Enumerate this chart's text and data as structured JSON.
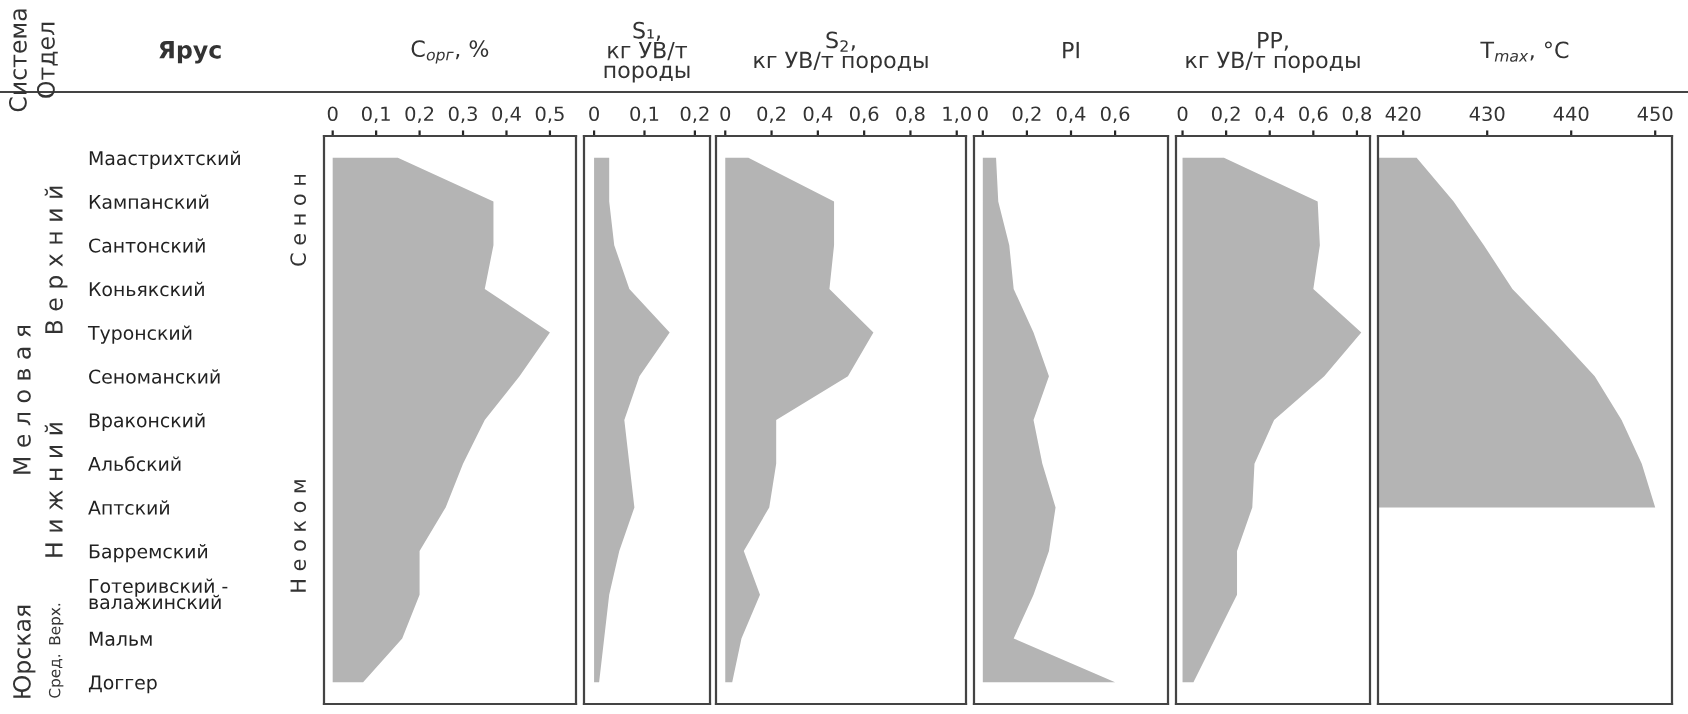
{
  "chart_data": [
    {
      "type": "area",
      "orientation": "horizontal",
      "title": "C$_{орг}$, %",
      "ylabel": "Ярус",
      "categories": [
        "Маастрихтский",
        "Кампанский",
        "Сантонский",
        "Коньякский",
        "Туронский",
        "Сеноманский",
        "Враконский",
        "Альбский",
        "Аптский",
        "Барремский",
        "Готеривский -\nвалажинский",
        "Мальм",
        "Доггер"
      ],
      "values": [
        0.15,
        0.37,
        0.37,
        0.35,
        0.5,
        0.43,
        0.35,
        0.3,
        0.26,
        0.2,
        0.2,
        0.16,
        0.07
      ],
      "color": "#b4b4b4",
      "xlim": [
        -0.02,
        0.56
      ],
      "xticks": [
        {
          "value": 0,
          "label": "0"
        },
        {
          "value": 0.1,
          "label": "0,1"
        },
        {
          "value": 0.2,
          "label": "0,2"
        },
        {
          "value": 0.3,
          "label": "0,3"
        },
        {
          "value": 0.4,
          "label": "0,4"
        },
        {
          "value": 0.5,
          "label": "0,5"
        }
      ],
      "annotations": [
        "Система",
        "Отдел",
        "М е л о в а я",
        "Юрская",
        "В е р х н и й",
        "Н и ж н и й",
        "Верх.",
        "Сред.",
        "С е н о н",
        "Н е о к о м"
      ]
    },
    {
      "type": "area",
      "orientation": "horizontal",
      "title": "S₁,\nкг УВ/т\nпороды",
      "tick_labels": "x",
      "categories": [
        null,
        null,
        null,
        null,
        null,
        null,
        null,
        null,
        null,
        null,
        null,
        null,
        null
      ],
      "values": [
        0.03,
        0.03,
        0.04,
        0.07,
        0.15,
        0.09,
        0.06,
        0.07,
        0.08,
        0.05,
        0.03,
        0.02,
        0.01
      ],
      "color": "#b4b4b4",
      "xlim": [
        -0.02,
        0.23
      ],
      "xticks": [
        {
          "value": 0,
          "label": "0"
        },
        {
          "value": 0.1,
          "label": "0,1"
        },
        {
          "value": 0.2,
          "label": "0,2"
        }
      ]
    },
    {
      "type": "area",
      "orientation": "horizontal",
      "title": "S$_{2}$,\nкг УВ/т породы",
      "tick_labels": "x",
      "categories": [
        null,
        null,
        null,
        null,
        null,
        null,
        null,
        null,
        null,
        null,
        null,
        null,
        null
      ],
      "values": [
        0.1,
        0.47,
        0.47,
        0.45,
        0.64,
        0.53,
        0.22,
        0.22,
        0.19,
        0.08,
        0.15,
        0.07,
        0.03
      ],
      "color": "#b4b4b4",
      "xlim": [
        -0.04,
        1.04
      ],
      "xticks": [
        {
          "value": 0,
          "label": "0"
        },
        {
          "value": 0.2,
          "label": "0,2"
        },
        {
          "value": 0.4,
          "label": "0,4"
        },
        {
          "value": 0.6,
          "label": "0,6"
        },
        {
          "value": 0.8,
          "label": "0,8"
        },
        {
          "value": 1.0,
          "label": "1,0"
        }
      ]
    },
    {
      "type": "area",
      "orientation": "horizontal",
      "title": "PI",
      "tick_labels": "x",
      "categories": [
        null,
        null,
        null,
        null,
        null,
        null,
        null,
        null,
        null,
        null,
        null,
        null,
        null
      ],
      "values": [
        0.06,
        0.07,
        0.12,
        0.14,
        0.23,
        0.3,
        0.23,
        0.27,
        0.33,
        0.3,
        0.23,
        0.14,
        0.6
      ],
      "color": "#b4b4b4",
      "xlim": [
        -0.04,
        0.84
      ],
      "xticks": [
        {
          "value": 0,
          "label": "0"
        },
        {
          "value": 0.2,
          "label": "0,2"
        },
        {
          "value": 0.4,
          "label": "0,4"
        },
        {
          "value": 0.6,
          "label": "0,6"
        }
      ]
    },
    {
      "type": "area",
      "orientation": "horizontal",
      "title": "PP,\nкг УВ/т породы",
      "tick_labels": "x",
      "categories": [
        null,
        null,
        null,
        null,
        null,
        null,
        null,
        null,
        null,
        null,
        null,
        null,
        null
      ],
      "values": [
        0.19,
        0.62,
        0.63,
        0.6,
        0.82,
        0.65,
        0.42,
        0.33,
        0.32,
        0.25,
        0.25,
        0.15,
        0.05
      ],
      "color": "#b4b4b4",
      "xlim": [
        -0.03,
        0.86
      ],
      "xticks": [
        {
          "value": 0,
          "label": "0"
        },
        {
          "value": 0.2,
          "label": "0,2"
        },
        {
          "value": 0.4,
          "label": "0,4"
        },
        {
          "value": 0.6,
          "label": "0,6"
        },
        {
          "value": 0.8,
          "label": "0,8"
        }
      ]
    },
    {
      "type": "area",
      "orientation": "horizontal",
      "title": "T$_{max}$, °C",
      "tick_labels": "x",
      "categories": [
        null,
        null,
        null,
        null,
        null,
        null,
        null,
        null,
        null,
        null,
        null,
        null,
        null
      ],
      "values": [
        421.6,
        426,
        429.6,
        433,
        438,
        442.8,
        446,
        448.4,
        450,
        null,
        null,
        null,
        null
      ],
      "color": "#b4b4b4",
      "xlim": [
        417,
        452
      ],
      "xticks": [
        420,
        430,
        440,
        450
      ]
    }
  ]
}
